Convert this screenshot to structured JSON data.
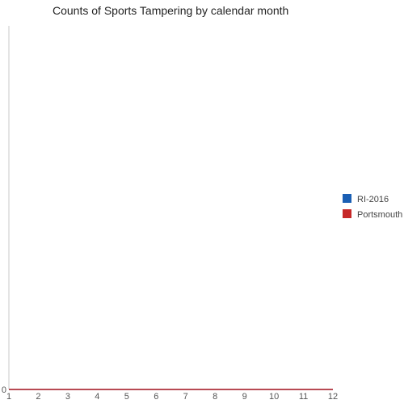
{
  "chart_data": {
    "type": "line",
    "title": "Counts of Sports Tampering by calendar month",
    "xlabel": "",
    "ylabel": "",
    "x": [
      1,
      2,
      3,
      4,
      5,
      6,
      7,
      8,
      9,
      10,
      11,
      12
    ],
    "x_ticks": [
      "1",
      "2",
      "3",
      "4",
      "5",
      "6",
      "7",
      "8",
      "9",
      "10",
      "11",
      "12"
    ],
    "xlim": [
      1,
      12
    ],
    "y_ticks": [
      "0"
    ],
    "ylim": [
      0,
      1
    ],
    "grid": false,
    "legend_position": "right",
    "series": [
      {
        "name": "RI-2016",
        "color": "#1a5fb4",
        "values": [
          0,
          0,
          0,
          0,
          0,
          0,
          0,
          0,
          0,
          0,
          0,
          0
        ]
      },
      {
        "name": "Portsmouth",
        "color": "#c62828",
        "values": [
          0,
          0,
          0,
          0,
          0,
          0,
          0,
          0,
          0,
          0,
          0,
          0
        ]
      }
    ]
  }
}
